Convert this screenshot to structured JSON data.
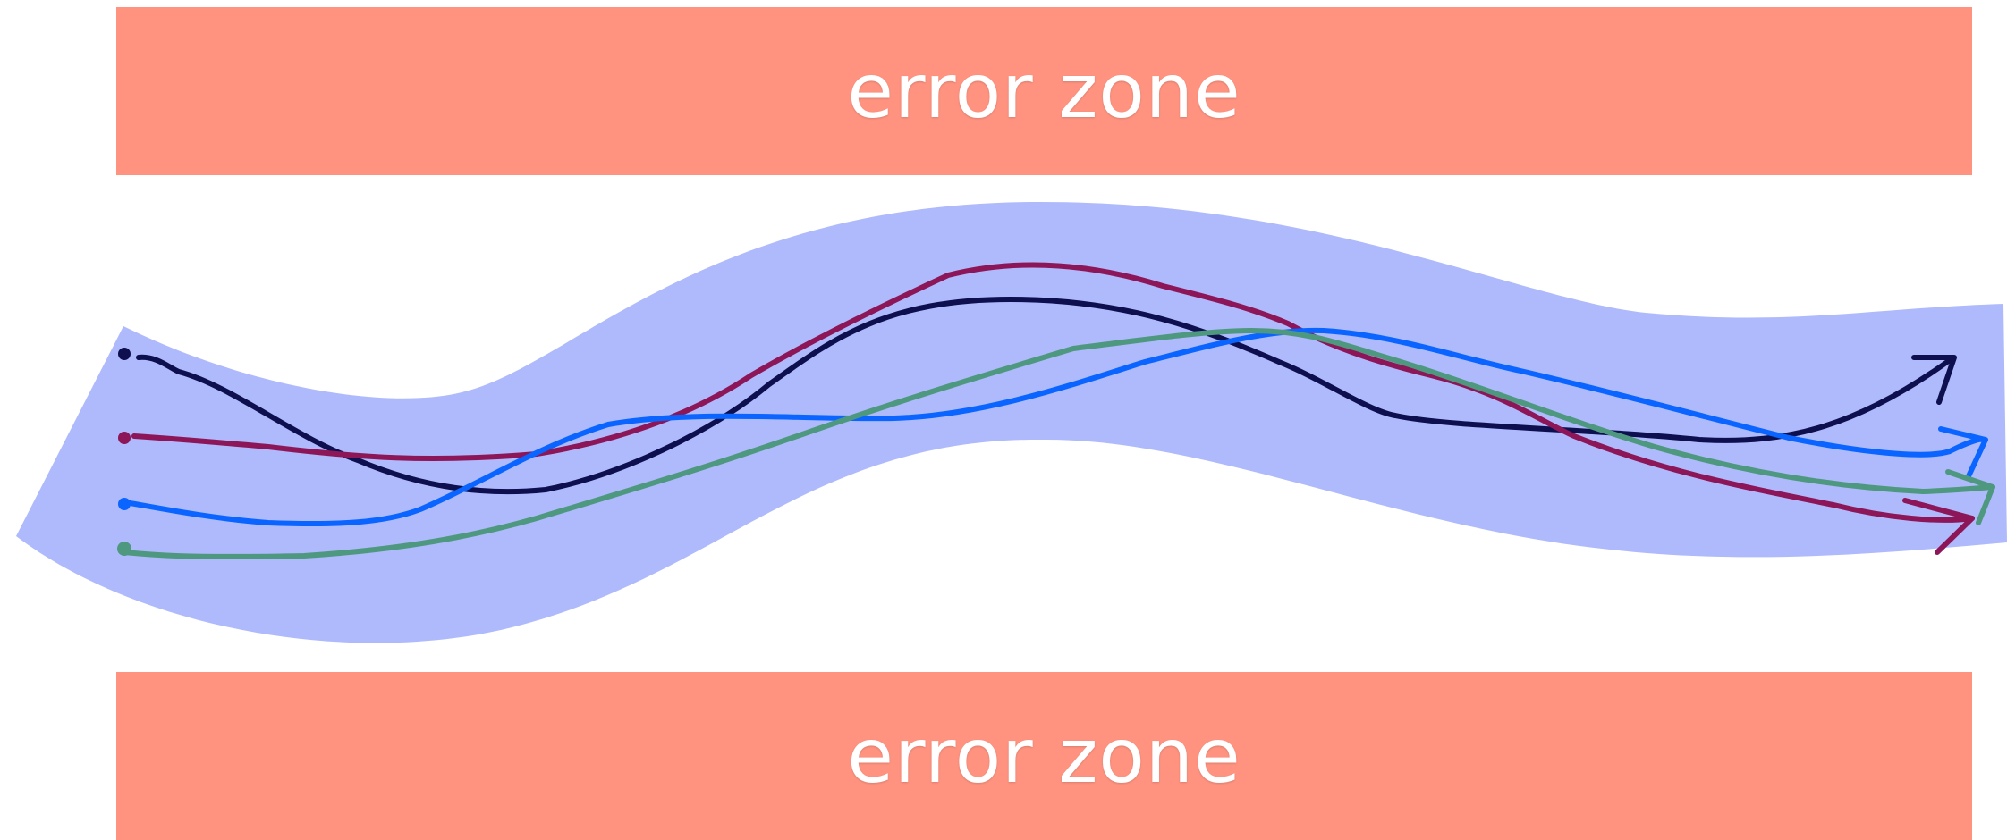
{
  "zones": {
    "top_label": "error zone",
    "bottom_label": "error zone"
  },
  "colors": {
    "zone": "#ff9380",
    "band": "#aebafc",
    "path_navy": "#0d0f4f",
    "path_magenta": "#8c1657",
    "path_blue": "#0a64ff",
    "path_teal": "#4e9880"
  }
}
